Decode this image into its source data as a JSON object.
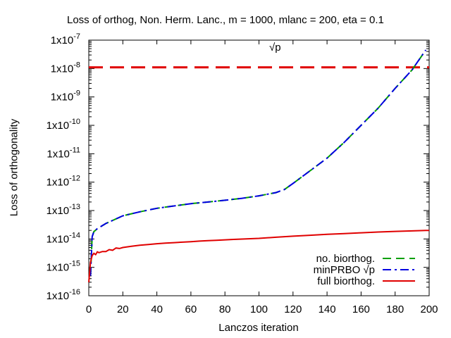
{
  "chart_data": {
    "type": "line",
    "title": "Loss of orthog, Non. Herm. Lanc., m = 1000, mlanc = 200, eta = 0.1",
    "xlabel": "Lanczos iteration",
    "ylabel": "Loss of orthogonality",
    "xlim": [
      0,
      200
    ],
    "ylim": [
      1e-16,
      1e-07
    ],
    "yscale": "log",
    "xticks": [
      "0",
      "20",
      "40",
      "60",
      "80",
      "100",
      "120",
      "140",
      "160",
      "180",
      "200"
    ],
    "yticks": [
      {
        "base": "1x10",
        "exp": "-16",
        "value": 1e-16
      },
      {
        "base": "1x10",
        "exp": "-15",
        "value": 1e-15
      },
      {
        "base": "1x10",
        "exp": "-14",
        "value": 1e-14
      },
      {
        "base": "1x10",
        "exp": "-13",
        "value": 1e-13
      },
      {
        "base": "1x10",
        "exp": "-12",
        "value": 1e-12
      },
      {
        "base": "1x10",
        "exp": "-11",
        "value": 1e-11
      },
      {
        "base": "1x10",
        "exp": "-10",
        "value": 1e-10
      },
      {
        "base": "1x10",
        "exp": "-9",
        "value": 1e-09
      },
      {
        "base": "1x10",
        "exp": "-8",
        "value": 1e-08
      },
      {
        "base": "1x10",
        "exp": "-7",
        "value": 1e-07
      }
    ],
    "grid": false,
    "legend_position": "bottom-right",
    "annotation": {
      "text": "√p",
      "x": 106,
      "y": 4.2e-08
    },
    "reference_line": {
      "y": 1.1e-08,
      "color": "#e00000",
      "style": "dashed"
    },
    "series": [
      {
        "name": "no. biorthog.",
        "color": "#00a000",
        "style": "dashed",
        "x": [
          1,
          2,
          3,
          5,
          10,
          20,
          30,
          40,
          50,
          60,
          70,
          80,
          90,
          100,
          110,
          115,
          120,
          130,
          140,
          150,
          160,
          170,
          180,
          190,
          198
        ],
        "y": [
          5e-16,
          1.2e-14,
          1.8e-14,
          2.3e-14,
          3.5e-14,
          6.5e-14,
          9e-14,
          1.2e-13,
          1.45e-13,
          1.75e-13,
          2e-13,
          2.3e-13,
          2.7e-13,
          3.3e-13,
          4.3e-13,
          5.5e-13,
          9e-13,
          2.5e-12,
          7e-12,
          2.5e-11,
          1e-10,
          4e-10,
          2e-09,
          9e-09,
          4.5e-08
        ]
      },
      {
        "name": "minPRBO √p",
        "color": "#0000e0",
        "style": "dashdot",
        "x": [
          1,
          2,
          3,
          5,
          10,
          20,
          30,
          40,
          50,
          60,
          70,
          80,
          90,
          100,
          110,
          115,
          120,
          130,
          140,
          150,
          160,
          170,
          180,
          190,
          198
        ],
        "y": [
          5e-16,
          1.2e-14,
          1.8e-14,
          2.3e-14,
          3.5e-14,
          6.5e-14,
          9e-14,
          1.2e-13,
          1.45e-13,
          1.75e-13,
          2e-13,
          2.3e-13,
          2.7e-13,
          3.3e-13,
          4.3e-13,
          5.5e-13,
          9e-13,
          2.5e-12,
          7e-12,
          2.5e-11,
          1e-10,
          4e-10,
          2e-09,
          9e-09,
          4.5e-08
        ]
      },
      {
        "name": "full biorthog.",
        "color": "#e00000",
        "style": "solid",
        "x": [
          0,
          1,
          2,
          3,
          4,
          5,
          6,
          8,
          10,
          12,
          14,
          16,
          18,
          20,
          25,
          30,
          35,
          40,
          45,
          50,
          55,
          60,
          65,
          70,
          75,
          80,
          85,
          90,
          95,
          100,
          110,
          120,
          130,
          140,
          150,
          160,
          170,
          180,
          190,
          195,
          198,
          200
        ],
        "y": [
          3e-16,
          1.5e-15,
          2.6e-15,
          3.1e-15,
          2.8e-15,
          3.5e-15,
          3.3e-15,
          3.6e-15,
          3.6e-15,
          4.2e-15,
          4e-15,
          4.8e-15,
          4.6e-15,
          5e-15,
          5.5e-15,
          6e-15,
          6.4e-15,
          6.8e-15,
          7.1e-15,
          7.4e-15,
          7.7e-15,
          8e-15,
          8.4e-15,
          8.7e-15,
          9e-15,
          9.3e-15,
          9.6e-15,
          9.9e-15,
          1.02e-14,
          1.05e-14,
          1.15e-14,
          1.25e-14,
          1.35e-14,
          1.45e-14,
          1.55e-14,
          1.65e-14,
          1.75e-14,
          1.85e-14,
          1.92e-14,
          1.97e-14,
          2e-14,
          2e-14
        ]
      }
    ]
  }
}
